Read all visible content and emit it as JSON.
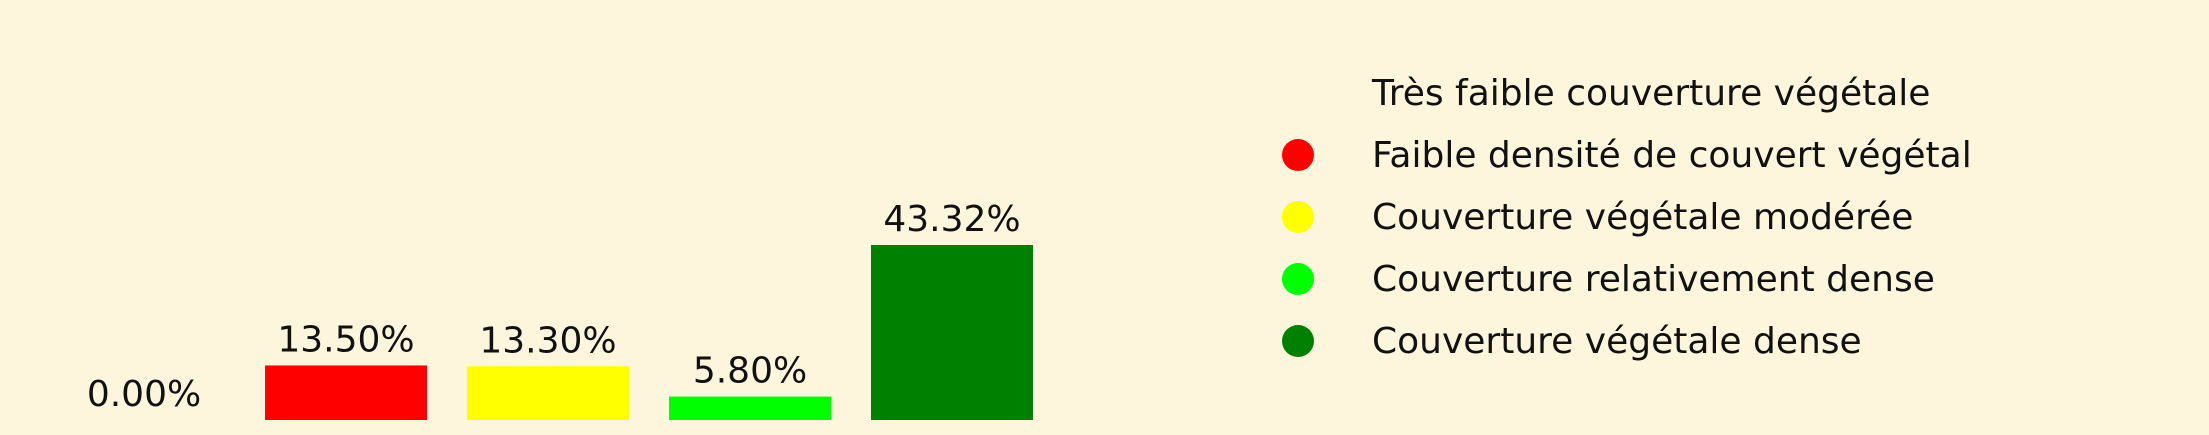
{
  "chart_data": {
    "type": "bar",
    "categories": [
      "Très faible couverture végétale",
      "Faible densité de couvert végétal",
      "Couverture végétale modérée",
      "Couverture relativement dense",
      "Couverture végétale dense"
    ],
    "values": [
      0.0,
      13.5,
      13.3,
      5.8,
      43.32
    ],
    "data_labels": [
      "0.00%",
      "13.50%",
      "13.30%",
      "5.80%",
      "43.32%"
    ],
    "colors": [
      "#fdf6dc",
      "#ff0000",
      "#ffff00",
      "#00ff00",
      "#008000"
    ],
    "ylim": [
      0,
      50
    ],
    "legend_position": "right",
    "grid": false,
    "axes_visible": false
  }
}
